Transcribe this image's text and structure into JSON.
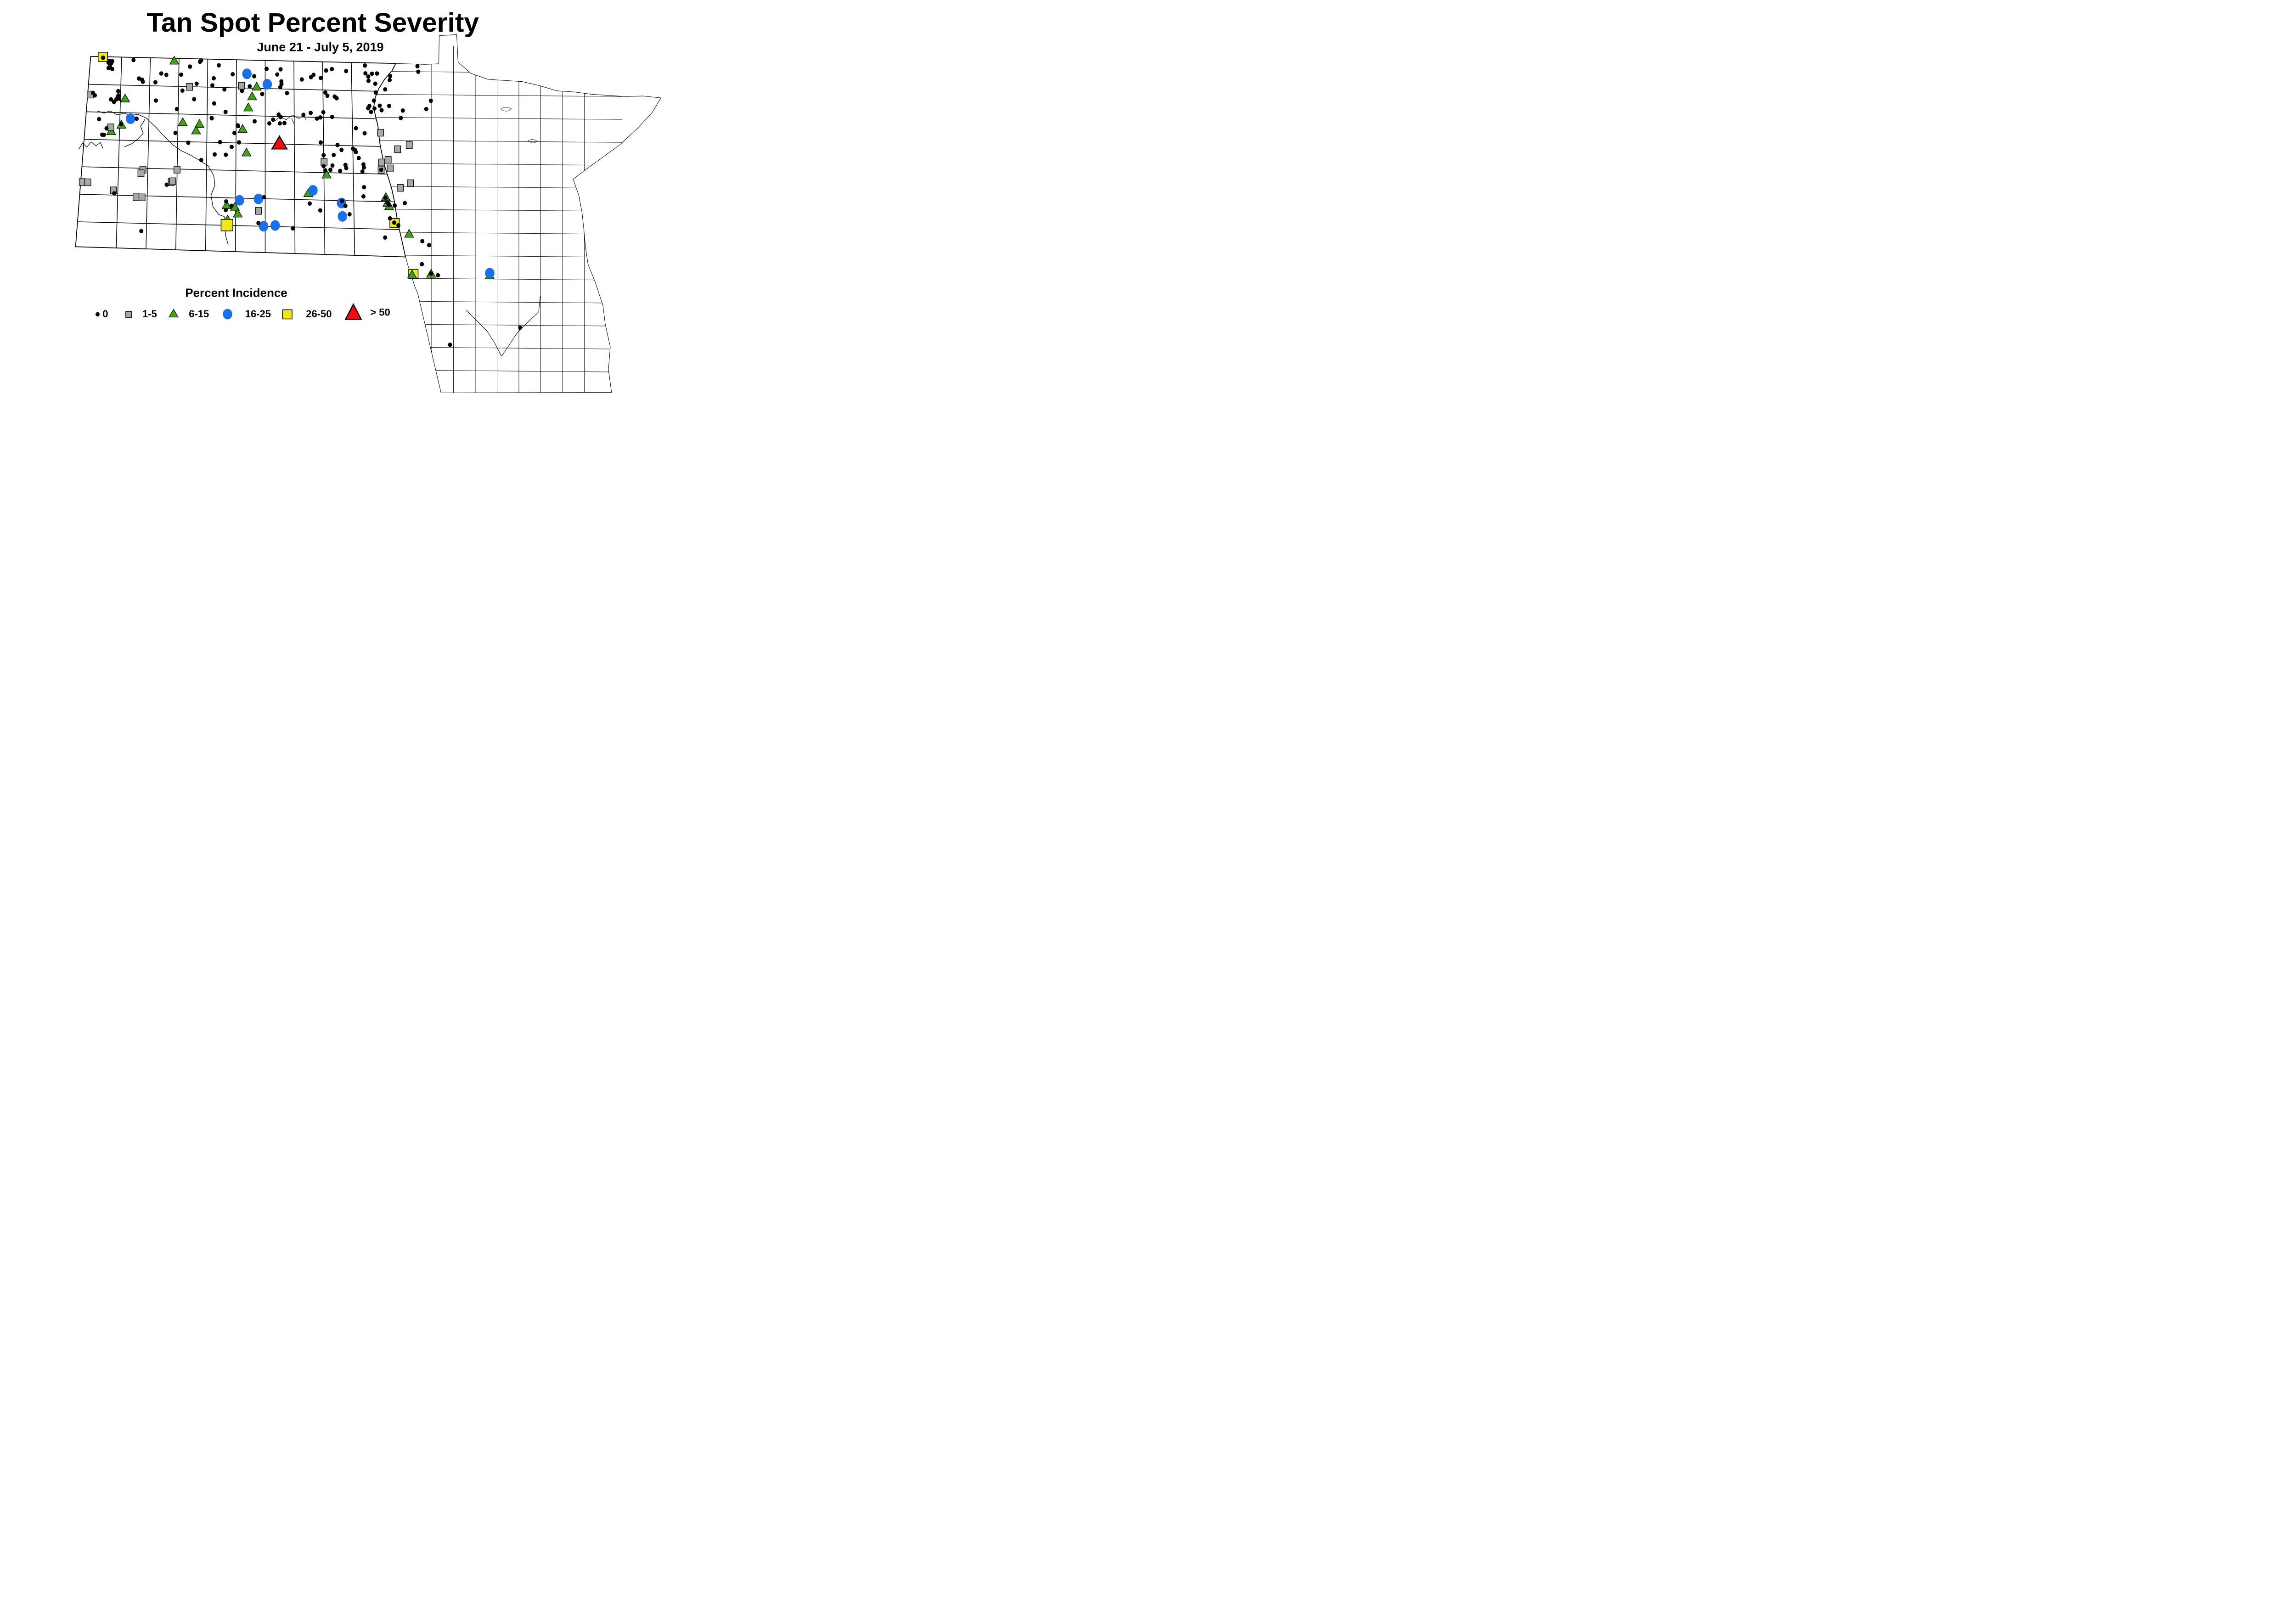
{
  "title": "Tan Spot Percent Severity",
  "subtitle": "June 21 - July 5, 2019",
  "legend": {
    "title": "Percent Incidence",
    "items": [
      {
        "label": "0",
        "key": "c0"
      },
      {
        "label": "1-5",
        "key": "c1_5"
      },
      {
        "label": "6-15",
        "key": "c6_15"
      },
      {
        "label": "16-25",
        "key": "c16_25"
      },
      {
        "label": "26-50",
        "key": "c26_50"
      },
      {
        "label": "> 50",
        "key": "c_gt50"
      }
    ]
  },
  "colors": {
    "c0": "#000000",
    "c1_5": "#a8a8a8",
    "c6_15": "#3da313",
    "c16_25": "#1a70e8",
    "c26_50": "#f0e714",
    "c_gt50": "#fb0808",
    "outline": "#000000"
  },
  "chart_data": {
    "type": "map-scatter",
    "region": "North Dakota and Minnesota counties",
    "categories": [
      "0",
      "1-5",
      "6-15",
      "16-25",
      "26-50",
      "> 50"
    ],
    "points": [
      [
        1651,
        756,
        "1-5"
      ],
      [
        786,
        823,
        "1-5"
      ],
      [
        2104,
        746,
        "1-5"
      ],
      [
        2823,
        1409,
        "1-5"
      ],
      [
        2252,
        1836,
        "1-5"
      ],
      [
        717,
        1585,
        "1-5"
      ],
      [
        765,
        1587,
        "1-5"
      ],
      [
        1245,
        1477,
        "1-5"
      ],
      [
        1228,
        1508,
        "1-5"
      ],
      [
        1542,
        1477,
        "1-5"
      ],
      [
        1492,
        1585,
        "1-5"
      ],
      [
        1504,
        1578,
        "1-5"
      ],
      [
        988,
        1657,
        "1-5"
      ],
      [
        1186,
        1717,
        "1-5"
      ],
      [
        1237,
        1718,
        "1-5"
      ],
      [
        3315,
        1155,
        "1-5"
      ],
      [
        3565,
        1262,
        "1-5"
      ],
      [
        3463,
        1299,
        "1-5"
      ],
      [
        3324,
        1414,
        "1-5"
      ],
      [
        3381,
        1391,
        "1-5"
      ],
      [
        3399,
        1466,
        "1-5"
      ],
      [
        3320,
        1481,
        "1-5"
      ],
      [
        3575,
        1595,
        "1-5"
      ],
      [
        3487,
        1635,
        "1-5"
      ],
      [
        1518,
        534,
        "6-15"
      ],
      [
        1090,
        863,
        "6-15"
      ],
      [
        1592,
        1070,
        "6-15"
      ],
      [
        1737,
        1085,
        "6-15"
      ],
      [
        1708,
        1142,
        "6-15"
      ],
      [
        968,
        1148,
        "6-15"
      ],
      [
        1057,
        1092,
        "6-15"
      ],
      [
        2236,
        760,
        "6-15"
      ],
      [
        2196,
        845,
        "6-15"
      ],
      [
        2163,
        942,
        "6-15"
      ],
      [
        2113,
        1128,
        "6-15"
      ],
      [
        2147,
        1334,
        "6-15"
      ],
      [
        2845,
        1526,
        "6-15"
      ],
      [
        1974,
        1792,
        "6-15"
      ],
      [
        2046,
        1807,
        "6-15"
      ],
      [
        2071,
        1866,
        "6-15"
      ],
      [
        2685,
        1688,
        "6-15"
      ],
      [
        3361,
        1722,
        "6-15"
      ],
      [
        3375,
        1772,
        "6-15"
      ],
      [
        3390,
        1802,
        "6-15"
      ],
      [
        3564,
        2042,
        "6-15"
      ],
      [
        3755,
        2390,
        "6-15"
      ],
      [
        4266,
        2404,
        "6-15"
      ],
      [
        1983,
        1918,
        "6-15"
      ],
      [
        965,
        1108,
        "1-5"
      ],
      [
        1137,
        1033,
        "16-25"
      ],
      [
        2151,
        642,
        "16-25"
      ],
      [
        2328,
        733,
        "16-25"
      ],
      [
        2726,
        1657,
        "16-25"
      ],
      [
        2086,
        1744,
        "16-25"
      ],
      [
        2251,
        1732,
        "16-25"
      ],
      [
        2975,
        1767,
        "16-25"
      ],
      [
        2983,
        1884,
        "16-25"
      ],
      [
        2296,
        1970,
        "16-25"
      ],
      [
        2397,
        1963,
        "16-25"
      ],
      [
        4266,
        2378,
        "16-25"
      ],
      [
        896,
        494,
        "26-50"
      ],
      [
        3437,
        1942,
        "26-50"
      ],
      [
        1977,
        1960,
        "26-50",
        1.25
      ],
      [
        3601,
        2385,
        "26-50"
      ],
      [
        3589,
        2397,
        "6-15"
      ],
      [
        2434,
        1248,
        ">50"
      ],
      [
        898,
        502,
        "0"
      ],
      [
        952,
        530,
        "0"
      ],
      [
        978,
        532,
        "0"
      ],
      [
        945,
        545,
        "0"
      ],
      [
        970,
        548,
        "0"
      ],
      [
        958,
        577,
        "0"
      ],
      [
        945,
        592,
        "0"
      ],
      [
        978,
        600,
        "0"
      ],
      [
        1163,
        522,
        "0"
      ],
      [
        1655,
        579,
        "0"
      ],
      [
        1742,
        537,
        "0"
      ],
      [
        1752,
        525,
        "0"
      ],
      [
        1405,
        639,
        "0"
      ],
      [
        1449,
        651,
        "0"
      ],
      [
        1578,
        649,
        "0"
      ],
      [
        1211,
        683,
        "0"
      ],
      [
        1237,
        693,
        "0"
      ],
      [
        1244,
        711,
        "0"
      ],
      [
        1354,
        716,
        "0"
      ],
      [
        1713,
        728,
        "0"
      ],
      [
        1589,
        788,
        "0"
      ],
      [
        810,
        808,
        "0"
      ],
      [
        826,
        830,
        "0"
      ],
      [
        1030,
        793,
        "0"
      ],
      [
        1031,
        830,
        "0"
      ],
      [
        1024,
        848,
        "0"
      ],
      [
        1039,
        858,
        "0"
      ],
      [
        1013,
        865,
        "0"
      ],
      [
        967,
        865,
        "0"
      ],
      [
        993,
        887,
        "0"
      ],
      [
        1358,
        875,
        "0"
      ],
      [
        1691,
        863,
        "0"
      ],
      [
        1541,
        949,
        "0"
      ],
      [
        1190,
        1033,
        "0"
      ],
      [
        863,
        1037,
        "0"
      ],
      [
        1055,
        1080,
        "0"
      ],
      [
        928,
        1117,
        "0"
      ],
      [
        890,
        1172,
        "0"
      ],
      [
        905,
        1173,
        "0"
      ],
      [
        1845,
        1030,
        "0"
      ],
      [
        1528,
        1157,
        "0"
      ],
      [
        1640,
        1242,
        "0"
      ],
      [
        1753,
        1393,
        "0"
      ],
      [
        1906,
        568,
        "0"
      ],
      [
        2027,
        646,
        "0"
      ],
      [
        1862,
        681,
        "0"
      ],
      [
        2214,
        663,
        "0"
      ],
      [
        2322,
        598,
        "0"
      ],
      [
        2444,
        603,
        "0"
      ],
      [
        2415,
        648,
        "0"
      ],
      [
        2175,
        751,
        "0"
      ],
      [
        1850,
        743,
        "0"
      ],
      [
        1955,
        778,
        "0"
      ],
      [
        2108,
        790,
        "0"
      ],
      [
        2284,
        818,
        "0"
      ],
      [
        2451,
        708,
        "0"
      ],
      [
        2452,
        731,
        "0"
      ],
      [
        2442,
        758,
        "0"
      ],
      [
        2500,
        810,
        "0"
      ],
      [
        2629,
        691,
        "0"
      ],
      [
        2709,
        671,
        "0"
      ],
      [
        2731,
        651,
        "0"
      ],
      [
        2794,
        678,
        "0"
      ],
      [
        2841,
        613,
        "0"
      ],
      [
        2891,
        601,
        "0"
      ],
      [
        3015,
        618,
        "0"
      ],
      [
        2834,
        805,
        "0"
      ],
      [
        2852,
        833,
        "0"
      ],
      [
        2915,
        840,
        "0"
      ],
      [
        2933,
        855,
        "0"
      ],
      [
        1866,
        900,
        "0"
      ],
      [
        1965,
        974,
        "0"
      ],
      [
        1844,
        1027,
        "0"
      ],
      [
        2218,
        1056,
        "0"
      ],
      [
        2071,
        1091,
        "0"
      ],
      [
        2075,
        1097,
        "0"
      ],
      [
        2427,
        997,
        "0"
      ],
      [
        2445,
        1019,
        "0"
      ],
      [
        2379,
        1041,
        "0"
      ],
      [
        2346,
        1074,
        "0"
      ],
      [
        2438,
        1074,
        "0"
      ],
      [
        2478,
        1071,
        "0"
      ],
      [
        2643,
        999,
        "0"
      ],
      [
        2706,
        982,
        "0"
      ],
      [
        2761,
        1032,
        "0"
      ],
      [
        2790,
        1022,
        "0"
      ],
      [
        2893,
        1017,
        "0"
      ],
      [
        2816,
        977,
        "0"
      ],
      [
        3179,
        570,
        "0"
      ],
      [
        3183,
        638,
        "0"
      ],
      [
        3240,
        641,
        "0"
      ],
      [
        3284,
        639,
        "0"
      ],
      [
        3208,
        666,
        "0"
      ],
      [
        3210,
        703,
        "0"
      ],
      [
        3399,
        661,
        "0"
      ],
      [
        3394,
        696,
        "0"
      ],
      [
        3269,
        728,
        "0"
      ],
      [
        3636,
        576,
        "0"
      ],
      [
        3643,
        624,
        "0"
      ],
      [
        3355,
        778,
        "0"
      ],
      [
        3273,
        805,
        "0"
      ],
      [
        3257,
        875,
        "0"
      ],
      [
        3218,
        922,
        "0"
      ],
      [
        3207,
        942,
        "0"
      ],
      [
        3262,
        944,
        "0"
      ],
      [
        3308,
        920,
        "0"
      ],
      [
        3390,
        922,
        "0"
      ],
      [
        3324,
        959,
        "0"
      ],
      [
        3232,
        974,
        "0"
      ],
      [
        3509,
        962,
        "0"
      ],
      [
        3491,
        1027,
        "0"
      ],
      [
        3753,
        877,
        "0"
      ],
      [
        3713,
        949,
        "0"
      ],
      [
        3100,
        1116,
        "0"
      ],
      [
        3176,
        1160,
        "0"
      ],
      [
        2042,
        1158,
        "0"
      ],
      [
        1917,
        1237,
        "0"
      ],
      [
        2082,
        1239,
        "0"
      ],
      [
        2018,
        1278,
        "0"
      ],
      [
        1870,
        1344,
        "0"
      ],
      [
        1967,
        1347,
        "0"
      ],
      [
        2794,
        1240,
        "0"
      ],
      [
        2940,
        1262,
        "0"
      ],
      [
        2975,
        1305,
        "0"
      ],
      [
        2819,
        1351,
        "0"
      ],
      [
        2907,
        1349,
        "0"
      ],
      [
        2819,
        1446,
        "0"
      ],
      [
        2896,
        1441,
        "0"
      ],
      [
        2834,
        1483,
        "0"
      ],
      [
        2878,
        1478,
        "0"
      ],
      [
        3075,
        1294,
        "0"
      ],
      [
        3093,
        1307,
        "0"
      ],
      [
        3100,
        1324,
        "0"
      ],
      [
        3125,
        1376,
        "0"
      ],
      [
        3009,
        1436,
        "0"
      ],
      [
        3016,
        1463,
        "0"
      ],
      [
        2963,
        1488,
        "0"
      ],
      [
        3166,
        1431,
        "0"
      ],
      [
        3170,
        1458,
        "0"
      ],
      [
        3157,
        1493,
        "0"
      ],
      [
        3320,
        1478,
        "0"
      ],
      [
        3171,
        1630,
        "0"
      ],
      [
        3166,
        1710,
        "0"
      ],
      [
        1970,
        1754,
        "0"
      ],
      [
        2016,
        1792,
        "0"
      ],
      [
        1967,
        1829,
        "0"
      ],
      [
        2299,
        1717,
        "0"
      ],
      [
        2698,
        1772,
        "0"
      ],
      [
        2790,
        1832,
        "0"
      ],
      [
        2980,
        1750,
        "0"
      ],
      [
        3009,
        1792,
        "0"
      ],
      [
        3045,
        1866,
        "0"
      ],
      [
        3357,
        1720,
        "0"
      ],
      [
        3375,
        1764,
        "0"
      ],
      [
        3390,
        1784,
        "0"
      ],
      [
        3438,
        1789,
        "0"
      ],
      [
        3526,
        1769,
        "0"
      ],
      [
        3397,
        1901,
        "0"
      ],
      [
        3434,
        1938,
        "0"
      ],
      [
        3470,
        1962,
        "0"
      ],
      [
        1231,
        2012,
        "0"
      ],
      [
        2251,
        1942,
        "0"
      ],
      [
        2551,
        1988,
        "0"
      ],
      [
        1452,
        1608,
        "0"
      ],
      [
        995,
        1683,
        "0"
      ],
      [
        3355,
        2068,
        "0"
      ],
      [
        3679,
        2100,
        "0"
      ],
      [
        3738,
        2134,
        "0"
      ],
      [
        3675,
        2300,
        "0"
      ],
      [
        3755,
        2382,
        "0"
      ],
      [
        3815,
        2397,
        "0"
      ],
      [
        4531,
        2853,
        "0"
      ],
      [
        3920,
        3002,
        "0"
      ]
    ]
  }
}
